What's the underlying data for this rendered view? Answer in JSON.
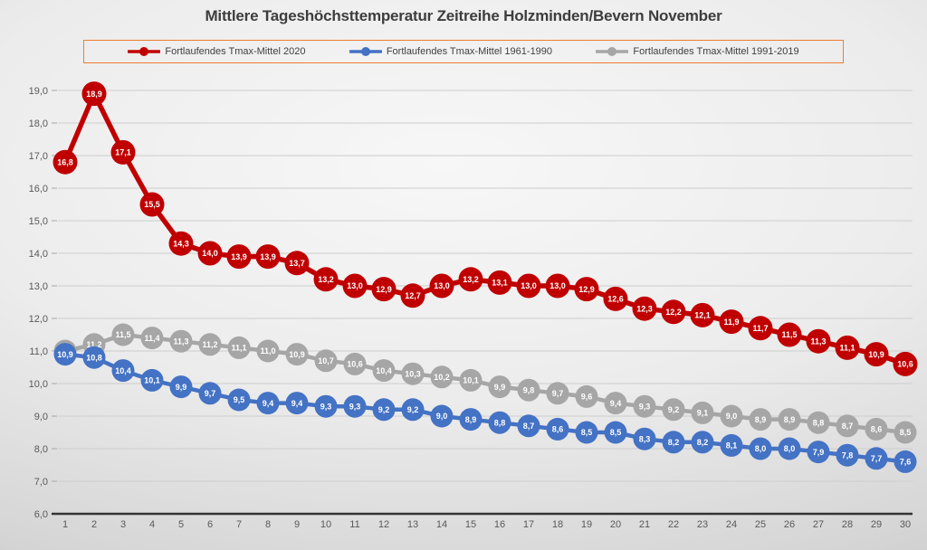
{
  "title": "Mittlere Tageshöchsttemperatur Zeitreihe Holzminden/Bevern November",
  "chart_data": {
    "type": "line",
    "title": "Mittlere Tageshöchsttemperatur Zeitreihe Holzminden/Bevern November",
    "xlabel": "",
    "ylabel": "",
    "x": [
      1,
      2,
      3,
      4,
      5,
      6,
      7,
      8,
      9,
      10,
      11,
      12,
      13,
      14,
      15,
      16,
      17,
      18,
      19,
      20,
      21,
      22,
      23,
      24,
      25,
      26,
      27,
      28,
      29,
      30
    ],
    "x_tick_labels": [
      "1",
      "2",
      "3",
      "4",
      "5",
      "6",
      "7",
      "8",
      "9",
      "10",
      "11",
      "12",
      "13",
      "14",
      "15",
      "16",
      "17",
      "18",
      "19",
      "20",
      "21",
      "22",
      "23",
      "24",
      "25",
      "26",
      "27",
      "28",
      "29",
      "30"
    ],
    "ylim": [
      6.0,
      19.0
    ],
    "ytick_step": 1.0,
    "y_tick_labels": [
      "19,0",
      "18,0",
      "17,0",
      "16,0",
      "15,0",
      "14,0",
      "13,0",
      "12,0",
      "11,0",
      "10,0",
      "9,0",
      "8,0",
      "7,0",
      "6,0"
    ],
    "decimal_separator": ",",
    "grid": true,
    "data_labels": true,
    "label_text_color": "#FFFFFF",
    "legend_position": "top",
    "legend_border_color": "#ED7D31",
    "series": [
      {
        "name": "Fortlaufendes Tmax-Mittel 2020",
        "color": "#C00000",
        "values": [
          16.8,
          18.9,
          17.1,
          15.5,
          14.3,
          14.0,
          13.9,
          13.9,
          13.7,
          13.2,
          13.0,
          12.9,
          12.7,
          13.0,
          13.2,
          13.1,
          13.0,
          13.0,
          12.9,
          12.6,
          12.3,
          12.2,
          12.1,
          11.9,
          11.7,
          11.5,
          11.3,
          11.1,
          10.9,
          10.6
        ]
      },
      {
        "name": "Fortlaufendes Tmax-Mittel 1961-1990",
        "color": "#4472C4",
        "values": [
          10.9,
          10.8,
          10.4,
          10.1,
          9.9,
          9.7,
          9.5,
          9.4,
          9.4,
          9.3,
          9.3,
          9.2,
          9.2,
          9.0,
          8.9,
          8.8,
          8.7,
          8.6,
          8.5,
          8.5,
          8.3,
          8.2,
          8.2,
          8.1,
          8.0,
          8.0,
          7.9,
          7.8,
          7.7,
          7.6
        ]
      },
      {
        "name": "Fortlaufendes Tmax-Mittel 1991-2019",
        "color": "#A6A6A6",
        "values": [
          11.0,
          11.2,
          11.5,
          11.4,
          11.3,
          11.2,
          11.1,
          11.0,
          10.9,
          10.7,
          10.6,
          10.4,
          10.3,
          10.2,
          10.1,
          9.9,
          9.8,
          9.7,
          9.6,
          9.4,
          9.3,
          9.2,
          9.1,
          9.0,
          8.9,
          8.9,
          8.8,
          8.7,
          8.6,
          8.5
        ]
      }
    ],
    "colors": {
      "axis_line": "#333333",
      "gridline": "#cdcdcd",
      "tick_text": "#595959"
    }
  }
}
